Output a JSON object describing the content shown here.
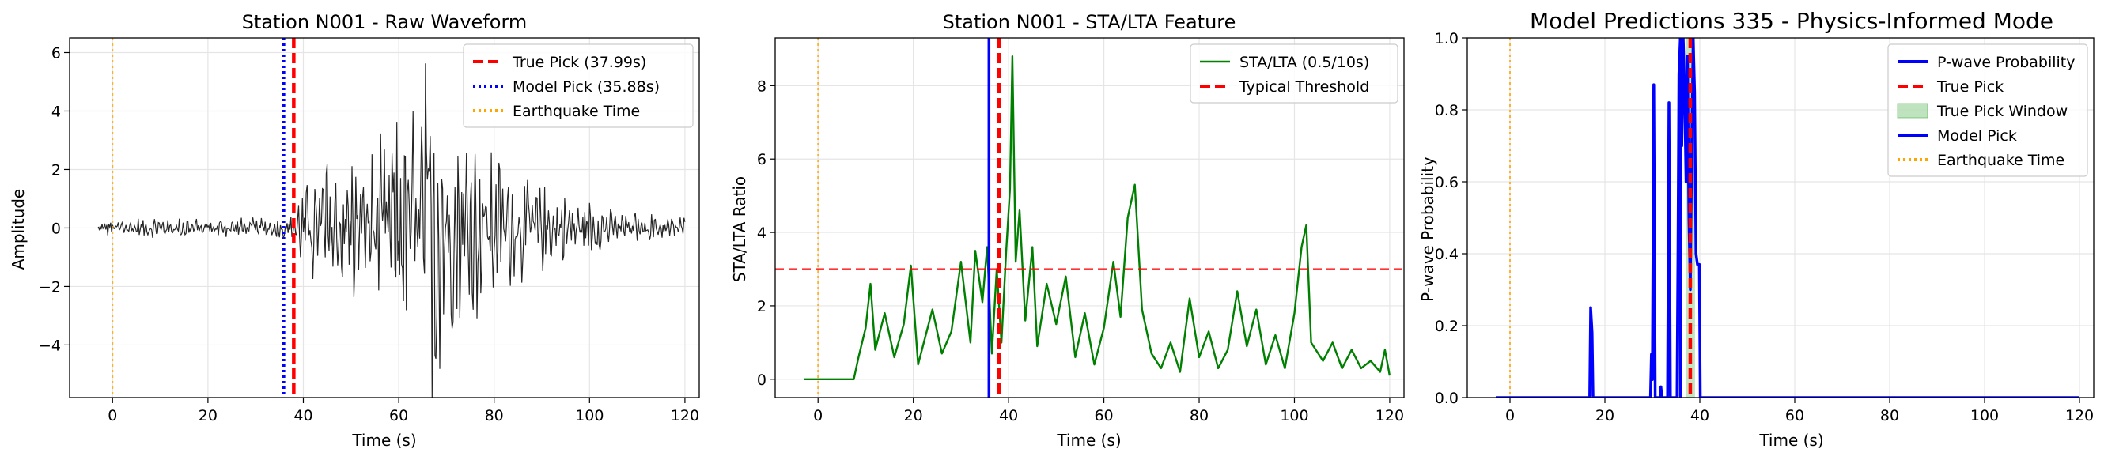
{
  "chart_data": [
    {
      "type": "line",
      "title": "Station N001 - Raw Waveform",
      "xlabel": "Time (s)",
      "ylabel": "Amplitude",
      "xlim": [
        -9,
        123
      ],
      "ylim": [
        -5.8,
        6.5
      ],
      "xticks": [
        0,
        20,
        40,
        60,
        80,
        100,
        120
      ],
      "yticks": [
        -4,
        -2,
        0,
        2,
        4,
        6
      ],
      "grid": true,
      "legend_position": "top-right",
      "series": [
        {
          "name": "Waveform",
          "color": "#262626",
          "style": "solid",
          "envelope": [
            [
              -3,
              0.25
            ],
            [
              10,
              0.3
            ],
            [
              20,
              0.32
            ],
            [
              30,
              0.3
            ],
            [
              35,
              0.35
            ],
            [
              37.9,
              0.45
            ],
            [
              40,
              1.2
            ],
            [
              45,
              2.2
            ],
            [
              50,
              2.2
            ],
            [
              55,
              2.1
            ],
            [
              60,
              3.0
            ],
            [
              63,
              3.6
            ],
            [
              66,
              4.6
            ],
            [
              67.5,
              5.4
            ],
            [
              70,
              3.6
            ],
            [
              75,
              2.7
            ],
            [
              80,
              2.2
            ],
            [
              85,
              1.6
            ],
            [
              90,
              1.2
            ],
            [
              95,
              0.9
            ],
            [
              100,
              0.8
            ],
            [
              105,
              0.6
            ],
            [
              110,
              0.45
            ],
            [
              115,
              0.35
            ],
            [
              120,
              0.3
            ]
          ]
        },
        {
          "name": "True Pick (37.99s)",
          "color": "#ff0000",
          "style": "dashed",
          "vline": 37.99
        },
        {
          "name": "Model Pick (35.88s)",
          "color": "#0000ff",
          "style": "dotted",
          "vline": 35.88
        },
        {
          "name": "Earthquake Time",
          "color": "#ffa500",
          "style": "dotted",
          "vline": 0
        }
      ],
      "legend": [
        "True Pick (37.99s)",
        "Model Pick (35.88s)",
        "Earthquake Time"
      ]
    },
    {
      "type": "line",
      "title": "Station N001 - STA/LTA Feature",
      "xlabel": "Time (s)",
      "ylabel": "STA/LTA Ratio",
      "xlim": [
        -9,
        123
      ],
      "ylim": [
        -0.5,
        9.3
      ],
      "xticks": [
        0,
        20,
        40,
        60,
        80,
        100,
        120
      ],
      "yticks": [
        0,
        2,
        4,
        6,
        8
      ],
      "grid": true,
      "legend_position": "top-right",
      "series": [
        {
          "name": "STA/LTA (0.5/10s)",
          "color": "#008000",
          "style": "solid",
          "points": [
            [
              -3,
              0
            ],
            [
              7.5,
              0
            ],
            [
              8.5,
              0.6
            ],
            [
              10,
              1.4
            ],
            [
              11,
              2.6
            ],
            [
              12,
              0.8
            ],
            [
              14,
              1.8
            ],
            [
              16,
              0.6
            ],
            [
              18,
              1.5
            ],
            [
              19.5,
              3.1
            ],
            [
              21,
              0.4
            ],
            [
              24,
              1.9
            ],
            [
              26,
              0.7
            ],
            [
              28,
              1.3
            ],
            [
              30,
              3.2
            ],
            [
              32,
              1.0
            ],
            [
              33,
              3.5
            ],
            [
              34.5,
              2.1
            ],
            [
              35.5,
              3.6
            ],
            [
              36.5,
              0.7
            ],
            [
              37.5,
              3.0
            ],
            [
              38.5,
              1.0
            ],
            [
              39.5,
              3.5
            ],
            [
              40.3,
              5.2
            ],
            [
              40.8,
              8.8
            ],
            [
              41.5,
              3.2
            ],
            [
              42.3,
              4.6
            ],
            [
              43.5,
              1.6
            ],
            [
              45,
              3.6
            ],
            [
              46,
              0.9
            ],
            [
              48,
              2.6
            ],
            [
              50,
              1.5
            ],
            [
              52,
              2.8
            ],
            [
              54,
              0.6
            ],
            [
              56,
              1.8
            ],
            [
              58,
              0.4
            ],
            [
              60,
              1.4
            ],
            [
              62,
              3.2
            ],
            [
              63.5,
              1.7
            ],
            [
              65,
              4.4
            ],
            [
              66.5,
              5.3
            ],
            [
              68,
              1.9
            ],
            [
              70,
              0.7
            ],
            [
              72,
              0.3
            ],
            [
              74,
              1.0
            ],
            [
              76,
              0.2
            ],
            [
              78,
              2.2
            ],
            [
              80,
              0.6
            ],
            [
              82,
              1.3
            ],
            [
              84,
              0.3
            ],
            [
              86,
              0.8
            ],
            [
              88,
              2.4
            ],
            [
              90,
              0.9
            ],
            [
              92,
              1.9
            ],
            [
              94,
              0.4
            ],
            [
              96,
              1.2
            ],
            [
              98,
              0.3
            ],
            [
              100,
              1.8
            ],
            [
              101.5,
              3.6
            ],
            [
              102.5,
              4.2
            ],
            [
              103.5,
              1.0
            ],
            [
              106,
              0.5
            ],
            [
              108,
              1.0
            ],
            [
              110,
              0.3
            ],
            [
              112,
              0.8
            ],
            [
              114,
              0.3
            ],
            [
              116,
              0.5
            ],
            [
              118,
              0.2
            ],
            [
              119,
              0.8
            ],
            [
              120,
              0.1
            ]
          ]
        },
        {
          "name": "Typical Threshold",
          "color": "#ff0000",
          "style": "dashed",
          "hline": 3.0
        },
        {
          "name": "Model Pick",
          "color": "#0000ff",
          "style": "solid",
          "vline": 35.88
        },
        {
          "name": "True Pick",
          "color": "#ff0000",
          "style": "dashed",
          "vline": 37.99
        },
        {
          "name": "Earthquake Time",
          "color": "#ffa500",
          "style": "dotted",
          "vline": 0
        }
      ],
      "legend": [
        "STA/LTA (0.5/10s)",
        "Typical Threshold"
      ]
    },
    {
      "type": "line",
      "title": "Model Predictions 335 - Physics-Informed Mode",
      "xlabel": "Time (s)",
      "ylabel": "P-wave Probability",
      "xlim": [
        -9,
        123
      ],
      "ylim": [
        0,
        1
      ],
      "xticks": [
        0,
        20,
        40,
        60,
        80,
        100,
        120
      ],
      "yticks": [
        0.0,
        0.2,
        0.4,
        0.6,
        0.8,
        1.0
      ],
      "grid": true,
      "legend_position": "top-right",
      "series": [
        {
          "name": "P-wave Probability",
          "color": "#0000ff",
          "style": "solid",
          "points": [
            [
              -3,
              0
            ],
            [
              16.8,
              0
            ],
            [
              17.0,
              0.25
            ],
            [
              17.3,
              0.18
            ],
            [
              17.5,
              0
            ],
            [
              29.6,
              0
            ],
            [
              29.8,
              0.12
            ],
            [
              30.0,
              0.05
            ],
            [
              30.3,
              0.87
            ],
            [
              30.6,
              0
            ],
            [
              31.6,
              0
            ],
            [
              31.8,
              0.03
            ],
            [
              32.0,
              0
            ],
            [
              33.2,
              0
            ],
            [
              33.5,
              0.82
            ],
            [
              33.8,
              0
            ],
            [
              35.2,
              0
            ],
            [
              35.4,
              0.4
            ],
            [
              35.6,
              0.9
            ],
            [
              35.9,
              1.0
            ],
            [
              36.2,
              0.7
            ],
            [
              36.5,
              1.0
            ],
            [
              36.8,
              0.85
            ],
            [
              37.1,
              0.6
            ],
            [
              37.4,
              0.95
            ],
            [
              37.7,
              0.5
            ],
            [
              38.0,
              0.3
            ],
            [
              38.3,
              0.7
            ],
            [
              38.6,
              1.0
            ],
            [
              38.9,
              0.85
            ],
            [
              39.2,
              0.4
            ],
            [
              39.5,
              0.37
            ],
            [
              39.9,
              0.37
            ],
            [
              40.1,
              0
            ],
            [
              120,
              0
            ]
          ]
        },
        {
          "name": "True Pick",
          "color": "#ff0000",
          "style": "dashed",
          "vline": 37.99
        },
        {
          "name": "True Pick Window",
          "color": "#2ca02c",
          "style": "fill",
          "xrange": [
            36.99,
            38.99
          ]
        },
        {
          "name": "Model Pick",
          "color": "#0000ff",
          "style": "solid",
          "vline": 35.88
        },
        {
          "name": "Earthquake Time",
          "color": "#ffa500",
          "style": "dotted",
          "vline": 0
        }
      ],
      "legend": [
        "P-wave Probability",
        "True Pick",
        "True Pick Window",
        "Model Pick",
        "Earthquake Time"
      ]
    }
  ]
}
